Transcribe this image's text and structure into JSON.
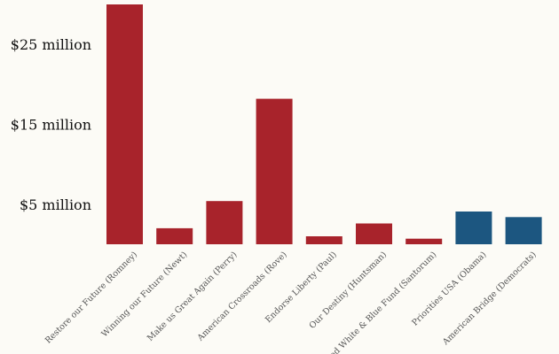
{
  "chart_data": {
    "type": "bar",
    "title": "",
    "xlabel": "",
    "ylabel": "",
    "categories": [
      "Restore our Future (Romney)",
      "Winning our Future (Newt)",
      "Make us Great Again (Perry)",
      "American Crossroads (Rove)",
      "Endorse Liberty (Paul)",
      "Our Destiny (Huntsman)",
      "Red White & Blue Fund (Santorum)",
      "Priorities USA (Obama)",
      "American Bridge (Democrats)"
    ],
    "values": [
      30.0,
      2.0,
      5.4,
      18.2,
      1.0,
      2.6,
      0.7,
      4.1,
      3.4
    ],
    "colors": [
      "#a8232b",
      "#a8232b",
      "#a8232b",
      "#a8232b",
      "#a8232b",
      "#a8232b",
      "#a8232b",
      "#1c5680",
      "#1c5680"
    ],
    "yticks": [
      5,
      15,
      25
    ],
    "ytick_labels": [
      "$5 million",
      "$15 million",
      "$25 million"
    ],
    "ylim": [
      0,
      30
    ],
    "grid": false,
    "legend": "none"
  }
}
